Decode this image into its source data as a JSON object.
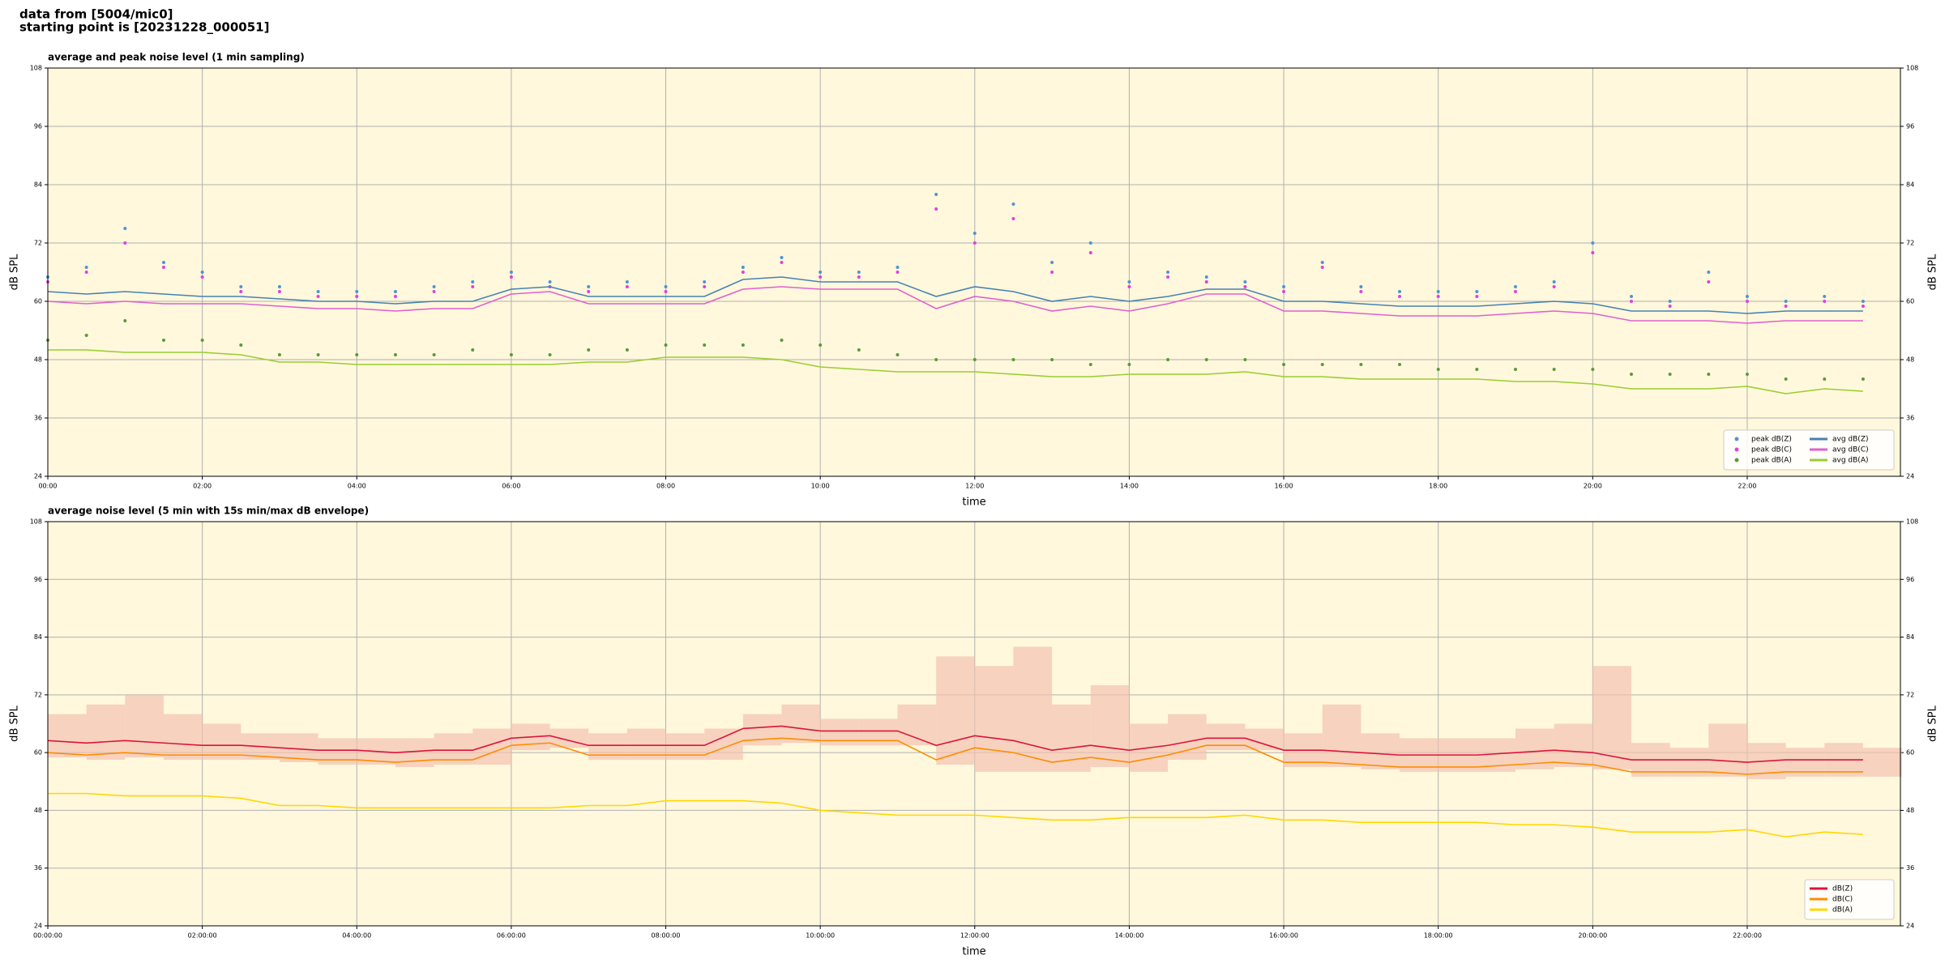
{
  "header": {
    "source": "data from [5004/mic0]",
    "start": "starting point is [20231228_000051]"
  },
  "chart_data": [
    {
      "type": "line",
      "title": "average and peak noise level (1 min sampling)",
      "xlabel": "time",
      "ylabel": "dB SPL",
      "x": [
        "00:00",
        "00:30",
        "01:00",
        "01:30",
        "02:00",
        "02:30",
        "03:00",
        "03:30",
        "04:00",
        "04:30",
        "05:00",
        "05:30",
        "06:00",
        "06:30",
        "07:00",
        "07:30",
        "08:00",
        "08:30",
        "09:00",
        "09:30",
        "10:00",
        "10:30",
        "11:00",
        "11:30",
        "12:00",
        "12:30",
        "13:00",
        "13:30",
        "14:00",
        "14:30",
        "15:00",
        "15:30",
        "16:00",
        "16:30",
        "17:00",
        "17:30",
        "18:00",
        "18:30",
        "19:00",
        "19:30",
        "20:00",
        "20:30",
        "21:00",
        "21:30",
        "22:00",
        "22:30",
        "23:00",
        "23:30"
      ],
      "xlim": [
        "00:00",
        "23:59"
      ],
      "xticks": [
        "00:00",
        "02:00",
        "04:00",
        "06:00",
        "08:00",
        "10:00",
        "12:00",
        "14:00",
        "16:00",
        "18:00",
        "20:00",
        "22:00"
      ],
      "ylim": [
        24,
        108
      ],
      "yticks": [
        24,
        36,
        48,
        60,
        72,
        84,
        96,
        108
      ],
      "grid": true,
      "background": "#fff8dc",
      "legend": "lower right",
      "legend_columns": 2,
      "series": [
        {
          "name": "peak dB(Z)",
          "style": "scatter",
          "color": "#4f94d4",
          "values": [
            65,
            67,
            75,
            68,
            66,
            63,
            63,
            62,
            62,
            62,
            63,
            64,
            66,
            64,
            63,
            64,
            63,
            64,
            67,
            69,
            66,
            66,
            67,
            82,
            74,
            80,
            68,
            72,
            64,
            66,
            65,
            64,
            63,
            68,
            63,
            62,
            62,
            62,
            63,
            64,
            72,
            61,
            60,
            66,
            61,
            60,
            61,
            60
          ]
        },
        {
          "name": "peak dB(C)",
          "style": "scatter",
          "color": "#e040e0",
          "values": [
            64,
            66,
            72,
            67,
            65,
            62,
            62,
            61,
            61,
            61,
            62,
            63,
            65,
            63,
            62,
            63,
            62,
            63,
            66,
            68,
            65,
            65,
            66,
            79,
            72,
            77,
            66,
            70,
            63,
            65,
            64,
            63,
            62,
            67,
            62,
            61,
            61,
            61,
            62,
            63,
            70,
            60,
            59,
            64,
            60,
            59,
            60,
            59
          ]
        },
        {
          "name": "peak dB(A)",
          "style": "scatter",
          "color": "#5a9a3a",
          "values": [
            52,
            53,
            56,
            52,
            52,
            51,
            49,
            49,
            49,
            49,
            49,
            50,
            49,
            49,
            50,
            50,
            51,
            51,
            51,
            52,
            51,
            50,
            49,
            48,
            48,
            48,
            48,
            47,
            47,
            48,
            48,
            48,
            47,
            47,
            47,
            47,
            46,
            46,
            46,
            46,
            46,
            45,
            45,
            45,
            45,
            44,
            44,
            44
          ]
        },
        {
          "name": "avg dB(Z)",
          "style": "line",
          "color": "#4682b4",
          "values": [
            62,
            61.5,
            62,
            61.5,
            61,
            61,
            60.5,
            60,
            60,
            59.5,
            60,
            60,
            62.5,
            63,
            61,
            61,
            61,
            61,
            64.5,
            65,
            64,
            64,
            64,
            61,
            63,
            62,
            60,
            61,
            60,
            61,
            62.5,
            62.5,
            60,
            60,
            59.5,
            59,
            59,
            59,
            59.5,
            60,
            59.5,
            58,
            58,
            58,
            57.5,
            58,
            58,
            58
          ]
        },
        {
          "name": "avg dB(C)",
          "style": "line",
          "color": "#e060d0",
          "values": [
            60,
            59.5,
            60,
            59.5,
            59.5,
            59.5,
            59,
            58.5,
            58.5,
            58,
            58.5,
            58.5,
            61.5,
            62,
            59.5,
            59.5,
            59.5,
            59.5,
            62.5,
            63,
            62.5,
            62.5,
            62.5,
            58.5,
            61,
            60,
            58,
            59,
            58,
            59.5,
            61.5,
            61.5,
            58,
            58,
            57.5,
            57,
            57,
            57,
            57.5,
            58,
            57.5,
            56,
            56,
            56,
            55.5,
            56,
            56,
            56
          ]
        },
        {
          "name": "avg dB(A)",
          "style": "line",
          "color": "#9acd32",
          "values": [
            50,
            50,
            49.5,
            49.5,
            49.5,
            49,
            47.5,
            47.5,
            47,
            47,
            47,
            47,
            47,
            47,
            47.5,
            47.5,
            48.5,
            48.5,
            48.5,
            48,
            46.5,
            46,
            45.5,
            45.5,
            45.5,
            45,
            44.5,
            44.5,
            45,
            45,
            45,
            45.5,
            44.5,
            44.5,
            44,
            44,
            44,
            44,
            43.5,
            43.5,
            43,
            42,
            42,
            42,
            42.5,
            41,
            42,
            41.5
          ]
        }
      ]
    },
    {
      "type": "line",
      "title": "average noise level (5 min with 15s min/max dB envelope)",
      "xlabel": "time",
      "ylabel": "dB SPL",
      "x": [
        "00:00:00",
        "00:30:00",
        "01:00:00",
        "01:30:00",
        "02:00:00",
        "02:30:00",
        "03:00:00",
        "03:30:00",
        "04:00:00",
        "04:30:00",
        "05:00:00",
        "05:30:00",
        "06:00:00",
        "06:30:00",
        "07:00:00",
        "07:30:00",
        "08:00:00",
        "08:30:00",
        "09:00:00",
        "09:30:00",
        "10:00:00",
        "10:30:00",
        "11:00:00",
        "11:30:00",
        "12:00:00",
        "12:30:00",
        "13:00:00",
        "13:30:00",
        "14:00:00",
        "14:30:00",
        "15:00:00",
        "15:30:00",
        "16:00:00",
        "16:30:00",
        "17:00:00",
        "17:30:00",
        "18:00:00",
        "18:30:00",
        "19:00:00",
        "19:30:00",
        "20:00:00",
        "20:30:00",
        "21:00:00",
        "21:30:00",
        "22:00:00",
        "22:30:00",
        "23:00:00",
        "23:30:00"
      ],
      "xlim": [
        "00:00:00",
        "23:59:00"
      ],
      "xticks": [
        "00:00:00",
        "02:00:00",
        "04:00:00",
        "06:00:00",
        "08:00:00",
        "10:00:00",
        "12:00:00",
        "14:00:00",
        "16:00:00",
        "18:00:00",
        "20:00:00",
        "22:00:00"
      ],
      "ylim": [
        24,
        108
      ],
      "yticks": [
        24,
        36,
        48,
        60,
        72,
        84,
        96,
        108
      ],
      "grid": true,
      "background": "#fff8dc",
      "legend": "lower right",
      "legend_columns": 1,
      "envelope": {
        "color": "#f4c2b0",
        "upper": [
          68,
          70,
          72,
          68,
          66,
          64,
          64,
          63,
          63,
          63,
          64,
          65,
          66,
          65,
          64,
          65,
          64,
          65,
          68,
          70,
          67,
          67,
          70,
          80,
          78,
          82,
          70,
          74,
          66,
          68,
          66,
          65,
          64,
          70,
          64,
          63,
          63,
          63,
          65,
          66,
          78,
          62,
          61,
          66,
          62,
          61,
          62,
          61
        ],
        "lower": [
          59,
          58.5,
          59,
          58.5,
          58.5,
          58.5,
          58,
          57.5,
          57.5,
          57,
          57.5,
          57.5,
          60.5,
          61,
          58.5,
          58.5,
          58.5,
          58.5,
          61.5,
          62,
          61.5,
          61.5,
          61.5,
          57.5,
          56,
          56,
          56,
          57,
          56,
          58.5,
          60.5,
          60.5,
          57,
          57,
          56.5,
          56,
          56,
          56,
          56.5,
          57,
          56.5,
          55,
          55,
          55,
          54.5,
          55,
          55,
          55
        ]
      },
      "series": [
        {
          "name": "dB(Z)",
          "style": "line",
          "color": "#dc143c",
          "values": [
            62.5,
            62,
            62.5,
            62,
            61.5,
            61.5,
            61,
            60.5,
            60.5,
            60,
            60.5,
            60.5,
            63,
            63.5,
            61.5,
            61.5,
            61.5,
            61.5,
            65,
            65.5,
            64.5,
            64.5,
            64.5,
            61.5,
            63.5,
            62.5,
            60.5,
            61.5,
            60.5,
            61.5,
            63,
            63,
            60.5,
            60.5,
            60,
            59.5,
            59.5,
            59.5,
            60,
            60.5,
            60,
            58.5,
            58.5,
            58.5,
            58,
            58.5,
            58.5,
            58.5
          ]
        },
        {
          "name": "dB(C)",
          "style": "line",
          "color": "#ff8c00",
          "values": [
            60,
            59.5,
            60,
            59.5,
            59.5,
            59.5,
            59,
            58.5,
            58.5,
            58,
            58.5,
            58.5,
            61.5,
            62,
            59.5,
            59.5,
            59.5,
            59.5,
            62.5,
            63,
            62.5,
            62.5,
            62.5,
            58.5,
            61,
            60,
            58,
            59,
            58,
            59.5,
            61.5,
            61.5,
            58,
            58,
            57.5,
            57,
            57,
            57,
            57.5,
            58,
            57.5,
            56,
            56,
            56,
            55.5,
            56,
            56,
            56
          ]
        },
        {
          "name": "dB(A)",
          "style": "line",
          "color": "#ffd700",
          "values": [
            51.5,
            51.5,
            51,
            51,
            51,
            50.5,
            49,
            49,
            48.5,
            48.5,
            48.5,
            48.5,
            48.5,
            48.5,
            49,
            49,
            50,
            50,
            50,
            49.5,
            48,
            47.5,
            47,
            47,
            47,
            46.5,
            46,
            46,
            46.5,
            46.5,
            46.5,
            47,
            46,
            46,
            45.5,
            45.5,
            45.5,
            45.5,
            45,
            45,
            44.5,
            43.5,
            43.5,
            43.5,
            44,
            42.5,
            43.5,
            43
          ]
        }
      ]
    }
  ]
}
